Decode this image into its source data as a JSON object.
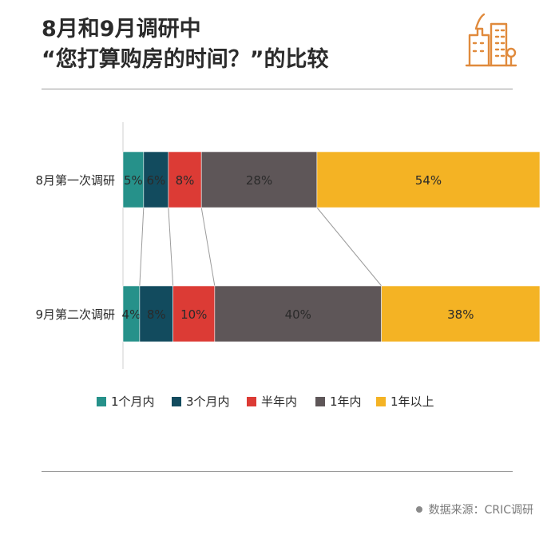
{
  "title": {
    "line1": "8月和9月调研中",
    "line2": "“您打算购房的时间？”的比较"
  },
  "source": "数据来源：CRIC调研",
  "logo_icon": "city-buildings-icon",
  "colors": {
    "accent": "#e08a3c",
    "rule": "#9a9a9a"
  },
  "chart_data": {
    "type": "bar",
    "stacked": true,
    "orientation": "horizontal",
    "percent_stacked": true,
    "categories": [
      "8月第一次调研",
      "9月第二次调研"
    ],
    "series": [
      {
        "name": "1个月内",
        "color": "#26918a",
        "values": [
          5,
          4
        ]
      },
      {
        "name": "3个月内",
        "color": "#124b5e",
        "values": [
          6,
          8
        ]
      },
      {
        "name": "半年内",
        "color": "#dc3b35",
        "values": [
          8,
          10
        ]
      },
      {
        "name": "1年内",
        "color": "#5e5658",
        "values": [
          28,
          40
        ]
      },
      {
        "name": "1年以上",
        "color": "#f4b324",
        "values": [
          54,
          38
        ]
      }
    ],
    "data_labels": [
      [
        "5%",
        "6%",
        "8%",
        "28%",
        "54%"
      ],
      [
        "4%",
        "8%",
        "10%",
        "40%",
        "38%"
      ]
    ],
    "legend_position": "bottom",
    "series_lines": true,
    "grid": false
  }
}
